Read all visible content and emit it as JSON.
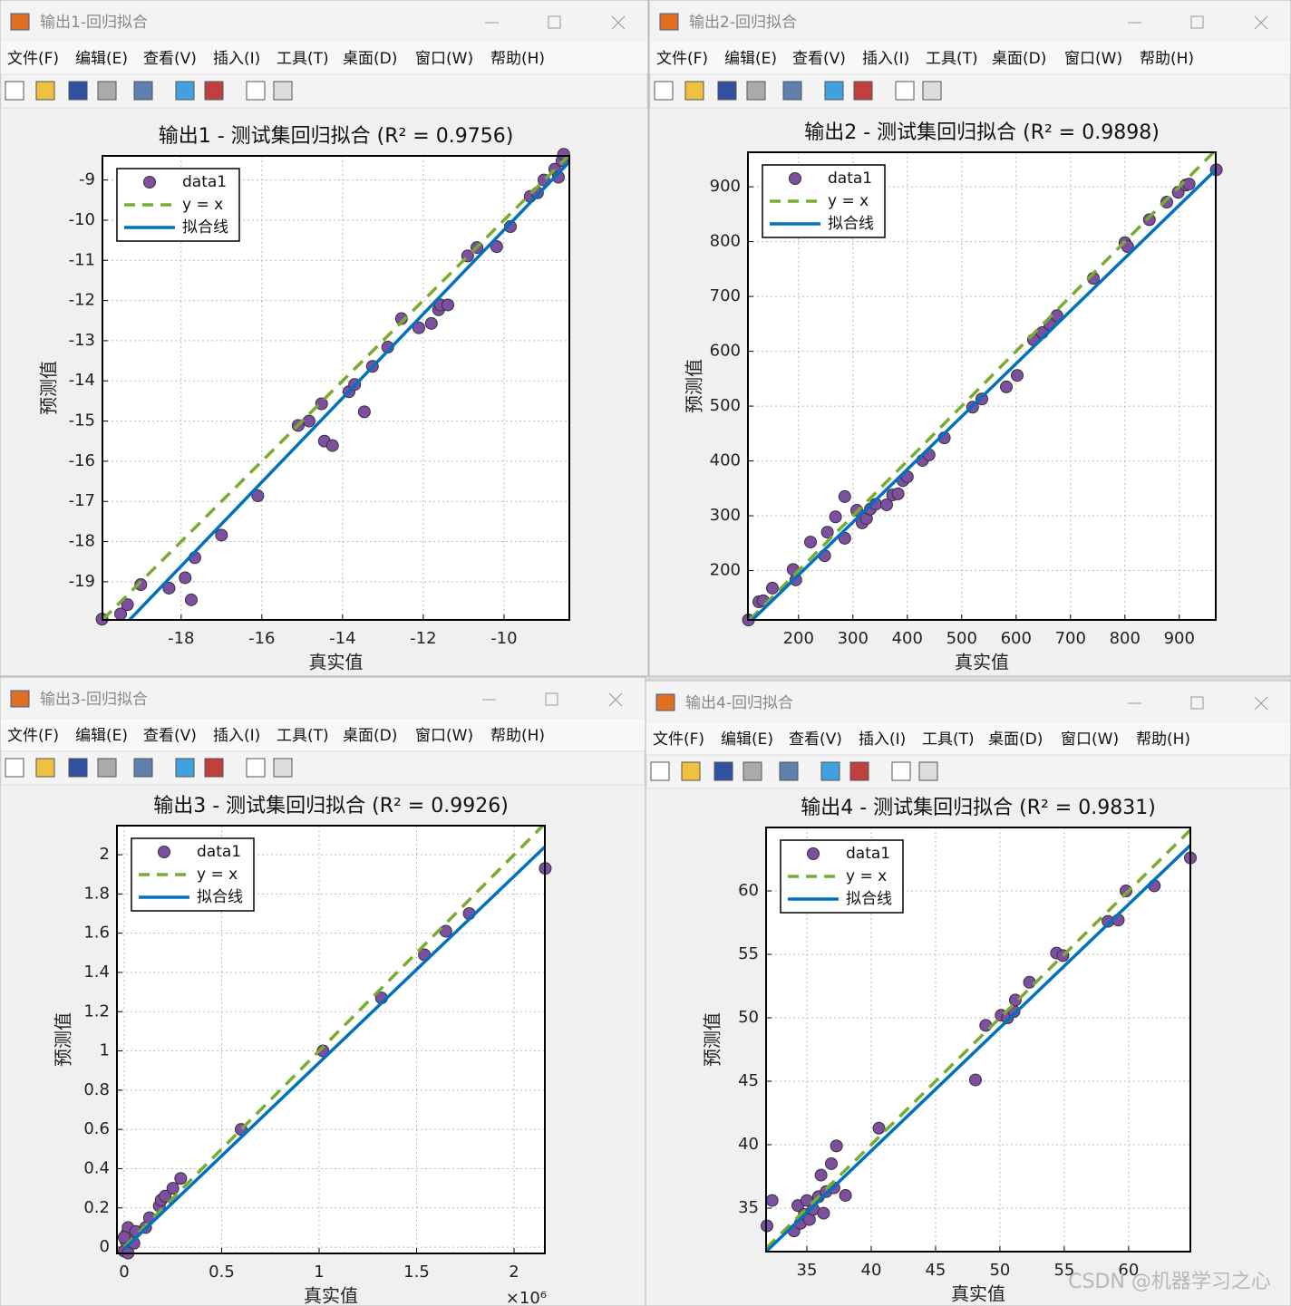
{
  "windows": [
    {
      "title": "输出1-回归拟合"
    },
    {
      "title": "输出2-回归拟合"
    },
    {
      "title": "输出3-回归拟合"
    },
    {
      "title": "输出4-回归拟合"
    }
  ],
  "menu": [
    "文件(F)",
    "编辑(E)",
    "查看(V)",
    "插入(I)",
    "工具(T)",
    "桌面(D)",
    "窗口(W)",
    "帮助(H)"
  ],
  "watermark": "CSDN @机器学习之心",
  "chart_data": [
    {
      "type": "scatter",
      "title": "输出1 - 测试集回归拟合 (R² = 0.9756)",
      "xlabel": "真实值",
      "ylabel": "预测值",
      "xlim": [
        -19.95,
        -8.38
      ],
      "ylim": [
        -19.95,
        -8.4
      ],
      "xticks": [
        -18,
        -16,
        -14,
        -12,
        -10
      ],
      "yticks": [
        -19,
        -18,
        -17,
        -16,
        -15,
        -14,
        -13,
        -12,
        -11,
        -10,
        -9
      ],
      "grid": true,
      "legend": "upper left",
      "series": [
        {
          "name": "data1",
          "type": "scatter",
          "color": "#7e4fa0",
          "x": [
            -19.96,
            -19.5,
            -19.33,
            -19,
            -18.3,
            -17.9,
            -17.75,
            -17.66,
            -17,
            -16.1,
            -15.1,
            -14.83,
            -14.52,
            -14.45,
            -14.25,
            -13.84,
            -13.7,
            -13.46,
            -13.26,
            -12.88,
            -12.54,
            -12.11,
            -11.8,
            -11.62,
            -11.57,
            -11.39,
            -10.9,
            -10.67,
            -10.18,
            -9.84,
            -9.35,
            -9.17,
            -9.01,
            -8.74,
            -8.65,
            -8.56,
            -8.52
          ],
          "values": [
            -19.93,
            -19.8,
            -19.57,
            -19.07,
            -19.16,
            -18.9,
            -19.45,
            -18.4,
            -17.84,
            -16.86,
            -15.11,
            -15,
            -14.57,
            -15.5,
            -15.61,
            -14.27,
            -14.09,
            -14.77,
            -13.64,
            -13.16,
            -12.45,
            -12.68,
            -12.57,
            -12.23,
            -12.11,
            -12.11,
            -10.89,
            -10.68,
            -10.66,
            -10.16,
            -9.41,
            -9.32,
            -9,
            -8.73,
            -8.93,
            -8.52,
            -8.36
          ]
        },
        {
          "name": "y = x",
          "type": "line",
          "dash": true,
          "color": "#77ac30",
          "x": [
            -19.95,
            -8.4
          ],
          "values": [
            -19.95,
            -8.4
          ]
        },
        {
          "name": "拟合线",
          "type": "line",
          "dash": false,
          "color": "#0072bd",
          "x": [
            -19.28,
            -8.38
          ],
          "values": [
            -19.95,
            -8.55
          ]
        }
      ]
    },
    {
      "type": "scatter",
      "title": "输出2 - 测试集回归拟合 (R² = 0.9898)",
      "xlabel": "真实值",
      "ylabel": "预测值",
      "xlim": [
        107,
        967
      ],
      "ylim": [
        110,
        963
      ],
      "xticks": [
        200,
        300,
        400,
        500,
        600,
        700,
        800,
        900
      ],
      "yticks": [
        200,
        300,
        400,
        500,
        600,
        700,
        800,
        900
      ],
      "grid": true,
      "legend": "upper left",
      "series": [
        {
          "name": "data1",
          "type": "scatter",
          "color": "#7e4fa0",
          "x": [
            108,
            127,
            135,
            152,
            190,
            195,
            222,
            248,
            253,
            268,
            285,
            285,
            307,
            317,
            325,
            332,
            342,
            362,
            373,
            383,
            392,
            400,
            428,
            440,
            468,
            520,
            537,
            582,
            602,
            632,
            648,
            662,
            675,
            742,
            800,
            805,
            845,
            877,
            898,
            912,
            918,
            968
          ],
          "values": [
            110,
            143,
            145,
            168,
            202,
            183,
            252,
            227,
            270,
            298,
            335,
            259,
            310,
            287,
            295,
            312,
            321,
            320,
            338,
            340,
            364,
            371,
            401,
            411,
            442,
            498,
            513,
            535,
            556,
            621,
            634,
            649,
            665,
            733,
            798,
            791,
            840,
            872,
            890,
            903,
            905,
            931
          ]
        },
        {
          "name": "y = x",
          "type": "line",
          "dash": true,
          "color": "#77ac30",
          "x": [
            110,
            963
          ],
          "values": [
            110,
            963
          ]
        },
        {
          "name": "拟合线",
          "type": "line",
          "dash": false,
          "color": "#0072bd",
          "x": [
            115,
            967
          ],
          "values": [
            110,
            931
          ]
        }
      ]
    },
    {
      "type": "scatter",
      "title": "输出3 - 测试集回归拟合 (R² = 0.9926)",
      "xlabel": "真实值",
      "ylabel": "预测值",
      "x_multiplier": "×10⁶",
      "xlim": [
        -0.037,
        2.158
      ],
      "ylim": [
        -0.032,
        2.148
      ],
      "xticks": [
        0,
        0.5,
        1,
        1.5,
        2
      ],
      "yticks": [
        0,
        0.2,
        0.4,
        0.6,
        0.8,
        1,
        1.2,
        1.4,
        1.6,
        1.8,
        2
      ],
      "grid": true,
      "legend": "upper left",
      "series": [
        {
          "name": "data1",
          "type": "scatter",
          "color": "#7e4fa0",
          "x": [
            0,
            0.01,
            0.014,
            0.02,
            0.04,
            0.05,
            0,
            0.02,
            0.06,
            0.11,
            0.13,
            0.18,
            0.19,
            0.21,
            0.25,
            0.29,
            0.6,
            1.02,
            1.32,
            1.54,
            1.65,
            1.77,
            2.16
          ],
          "values": [
            -0.02,
            0.03,
            0.07,
            0.1,
            0.05,
            0.02,
            0.05,
            -0.03,
            0.08,
            0.1,
            0.15,
            0.21,
            0.24,
            0.26,
            0.3,
            0.35,
            0.6,
            1.0,
            1.27,
            1.49,
            1.61,
            1.7,
            1.93
          ]
        },
        {
          "name": "y = x",
          "type": "line",
          "dash": true,
          "color": "#77ac30",
          "x": [
            0,
            2.148
          ],
          "values": [
            0,
            2.148
          ]
        },
        {
          "name": "拟合线",
          "type": "line",
          "dash": false,
          "color": "#0072bd",
          "x": [
            0,
            2.158
          ],
          "values": [
            -0.01,
            2.04
          ]
        }
      ]
    },
    {
      "type": "scatter",
      "title": "输出4 - 测试集回归拟合 (R² = 0.9831)",
      "xlabel": "真实值",
      "ylabel": "预测值",
      "xlim": [
        31.83,
        64.8
      ],
      "ylim": [
        31.57,
        65
      ],
      "xticks": [
        35,
        40,
        45,
        50,
        55,
        60
      ],
      "yticks": [
        35,
        40,
        45,
        50,
        55,
        60
      ],
      "grid": true,
      "legend": "upper left",
      "series": [
        {
          "name": "data1",
          "type": "scatter",
          "color": "#7e4fa0",
          "x": [
            31.9,
            32.3,
            34.0,
            34.3,
            34.5,
            34.8,
            35,
            35.2,
            35.5,
            35.9,
            36.1,
            36.3,
            36.5,
            36.9,
            37.1,
            37.3,
            38.0,
            40.6,
            48.1,
            48.9,
            50.1,
            50.6,
            51.1,
            51.2,
            52.3,
            54.4,
            54.9,
            58.4,
            59.2,
            59.8,
            62.0,
            64.8
          ],
          "values": [
            33.6,
            35.6,
            33.2,
            35.2,
            33.8,
            34.5,
            35.6,
            34.1,
            34.9,
            35.9,
            37.6,
            34.6,
            36.3,
            38.5,
            36.6,
            39.9,
            36.0,
            41.3,
            45.1,
            49.4,
            50.2,
            50.0,
            50.5,
            51.4,
            52.8,
            55.1,
            54.9,
            57.6,
            57.7,
            60.0,
            60.4,
            62.6
          ]
        },
        {
          "name": "y = x",
          "type": "line",
          "dash": true,
          "color": "#77ac30",
          "x": [
            31.83,
            64.8
          ],
          "values": [
            31.83,
            64.8
          ]
        },
        {
          "name": "拟合线",
          "type": "line",
          "dash": false,
          "color": "#0072bd",
          "x": [
            31.83,
            64.8
          ],
          "values": [
            31.57,
            63.6
          ]
        }
      ]
    }
  ]
}
